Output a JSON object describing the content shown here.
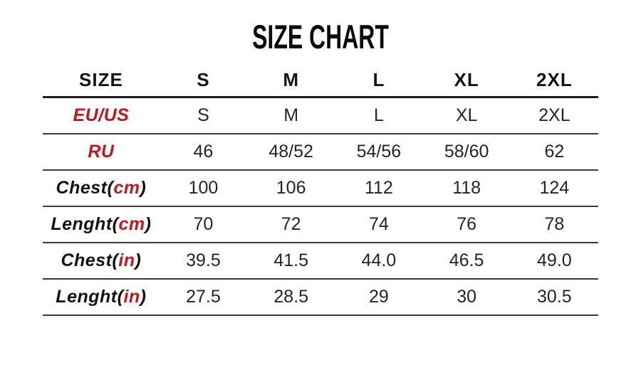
{
  "chart_data": {
    "type": "table",
    "title": "SIZE CHART",
    "columns": [
      "SIZE",
      "S",
      "M",
      "L",
      "XL",
      "2XL"
    ],
    "rows": [
      [
        "EU/US",
        "S",
        "M",
        "L",
        "XL",
        "2XL"
      ],
      [
        "RU",
        "46",
        "48/52",
        "54/56",
        "58/60",
        "62"
      ],
      [
        "Chest(cm)",
        "100",
        "106",
        "112",
        "118",
        "124"
      ],
      [
        "Lenght(cm)",
        "70",
        "72",
        "74",
        "76",
        "78"
      ],
      [
        "Chest(in)",
        "39.5",
        "41.5",
        "44.0",
        "46.5",
        "49.0"
      ],
      [
        "Lenght(in)",
        "27.5",
        "28.5",
        "29",
        "30",
        "30.5"
      ]
    ],
    "layout": {
      "header_row": true,
      "grid": "horizontal-rules-only",
      "legend": "none",
      "title_position": "top-center"
    }
  },
  "labels": [
    {
      "prefix": "EU/US",
      "unit": "",
      "suffix": ""
    },
    {
      "prefix": "RU",
      "unit": "",
      "suffix": ""
    },
    {
      "prefix": "Chest(",
      "unit": "cm",
      "suffix": ")"
    },
    {
      "prefix": "Lenght(",
      "unit": "cm",
      "suffix": ")"
    },
    {
      "prefix": "Chest(",
      "unit": "in",
      "suffix": ")"
    },
    {
      "prefix": "Lenght(",
      "unit": "in",
      "suffix": ")"
    }
  ],
  "colors": {
    "accent_red": "#C8141E",
    "text_black": "#141414",
    "header_rule": "#1b1b1b",
    "row_rule": "#3b3b3b",
    "background": "#ffffff"
  }
}
